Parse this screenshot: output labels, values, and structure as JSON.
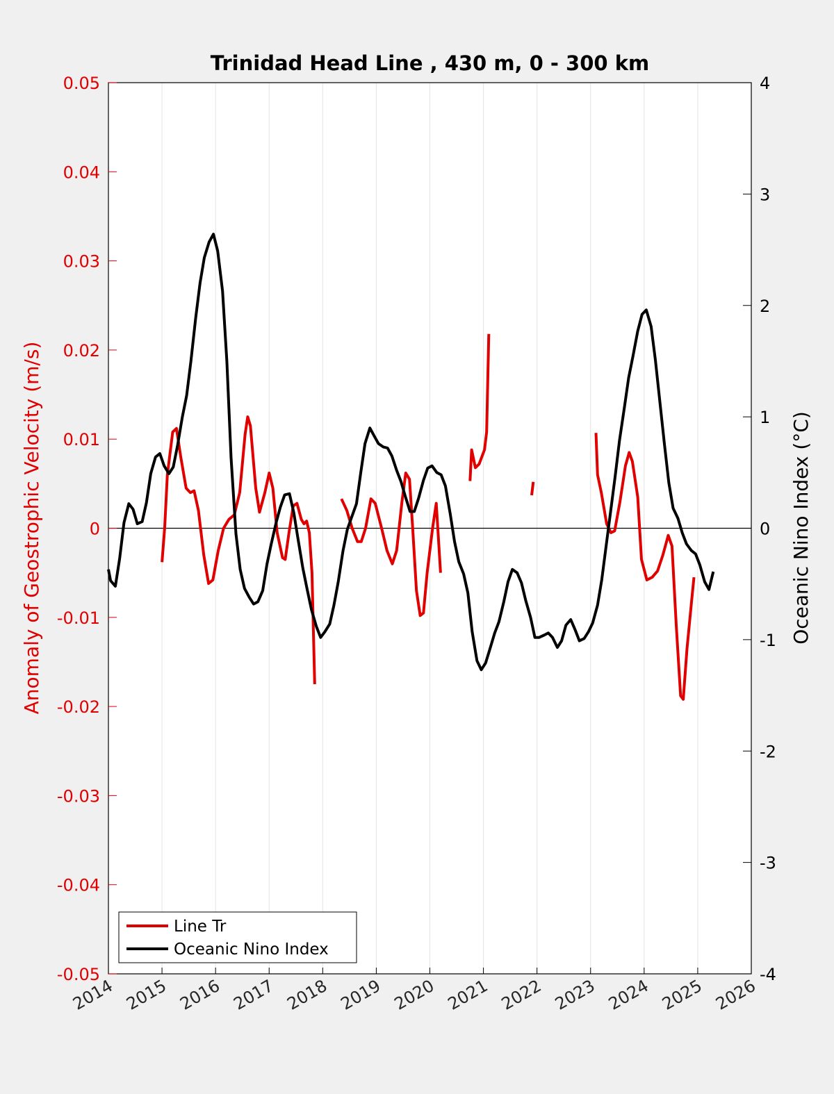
{
  "chart_data": {
    "type": "line",
    "title": "Trinidad Head Line , 430 m, 0 - 300 km",
    "xlabel": "",
    "ylabel_left": "Anomaly of Geostrophic Velocity (m/s)",
    "ylabel_right": "Oceanic Nino Index (°C)",
    "xlim": [
      2014,
      2026
    ],
    "ylim_left": [
      -0.05,
      0.05
    ],
    "ylim_right": [
      -4,
      4
    ],
    "x_ticks": [
      "2014",
      "2015",
      "2016",
      "2017",
      "2018",
      "2019",
      "2020",
      "2021",
      "2022",
      "2023",
      "2024",
      "2025",
      "2026"
    ],
    "y_ticks_left": [
      "-0.05",
      "-0.04",
      "-0.03",
      "-0.02",
      "-0.01",
      "0",
      "0.01",
      "0.02",
      "0.03",
      "0.04",
      "0.05"
    ],
    "y_ticks_right": [
      "-4",
      "-3",
      "-2",
      "-1",
      "0",
      "1",
      "2",
      "3",
      "4"
    ],
    "grid": "vertical",
    "legend_position": "bottom-left",
    "colors": {
      "line_tr": "#e00000",
      "oni": "#000000",
      "left_axis": "#e00000",
      "right_axis": "#000000"
    },
    "series": [
      {
        "name": "Line Tr",
        "axis": "left",
        "segments": [
          [
            [
              2015.0,
              -0.0038
            ],
            [
              2015.05,
              0.0
            ],
            [
              2015.1,
              0.006
            ],
            [
              2015.2,
              0.0108
            ],
            [
              2015.27,
              0.0112
            ],
            [
              2015.35,
              0.008
            ],
            [
              2015.45,
              0.0045
            ],
            [
              2015.53,
              0.004
            ],
            [
              2015.6,
              0.0042
            ],
            [
              2015.68,
              0.002
            ],
            [
              2015.78,
              -0.003
            ],
            [
              2015.87,
              -0.0062
            ],
            [
              2015.95,
              -0.0058
            ],
            [
              2016.05,
              -0.0025
            ],
            [
              2016.15,
              0.0
            ],
            [
              2016.25,
              0.001
            ],
            [
              2016.35,
              0.0015
            ],
            [
              2016.45,
              0.004
            ],
            [
              2016.55,
              0.0105
            ],
            [
              2016.6,
              0.0125
            ],
            [
              2016.65,
              0.0115
            ],
            [
              2016.75,
              0.0045
            ],
            [
              2016.82,
              0.0018
            ],
            [
              2016.92,
              0.004
            ],
            [
              2017.0,
              0.0062
            ],
            [
              2017.07,
              0.0045
            ],
            [
              2017.15,
              -0.0005
            ],
            [
              2017.25,
              -0.0033
            ],
            [
              2017.3,
              -0.0035
            ],
            [
              2017.37,
              -0.0005
            ],
            [
              2017.45,
              0.0025
            ],
            [
              2017.52,
              0.0028
            ],
            [
              2017.6,
              0.001
            ],
            [
              2017.65,
              0.0005
            ],
            [
              2017.7,
              0.0008
            ],
            [
              2017.75,
              -0.0005
            ],
            [
              2017.8,
              -0.005
            ],
            [
              2017.85,
              -0.0175
            ]
          ],
          [
            [
              2018.35,
              0.0033
            ],
            [
              2018.45,
              0.002
            ],
            [
              2018.55,
              0.0
            ],
            [
              2018.65,
              -0.0015
            ],
            [
              2018.72,
              -0.0015
            ],
            [
              2018.8,
              0.0
            ],
            [
              2018.9,
              0.0033
            ],
            [
              2018.98,
              0.0028
            ],
            [
              2019.1,
              0.0
            ],
            [
              2019.2,
              -0.0025
            ],
            [
              2019.3,
              -0.004
            ],
            [
              2019.38,
              -0.0025
            ],
            [
              2019.48,
              0.003
            ],
            [
              2019.55,
              0.0062
            ],
            [
              2019.62,
              0.0055
            ],
            [
              2019.68,
              0.0
            ],
            [
              2019.75,
              -0.007
            ],
            [
              2019.82,
              -0.0098
            ],
            [
              2019.88,
              -0.0095
            ],
            [
              2019.95,
              -0.005
            ],
            [
              2020.05,
              0.0
            ],
            [
              2020.12,
              0.0028
            ],
            [
              2020.2,
              -0.005
            ]
          ],
          [
            [
              2020.75,
              0.0053
            ],
            [
              2020.78,
              0.0088
            ],
            [
              2020.8,
              0.0082
            ],
            [
              2020.85,
              0.0068
            ],
            [
              2020.92,
              0.0072
            ],
            [
              2021.02,
              0.0088
            ],
            [
              2021.06,
              0.0108
            ],
            [
              2021.1,
              0.0218
            ]
          ],
          [
            [
              2021.9,
              0.0037
            ],
            [
              2021.93,
              0.0052
            ]
          ],
          [
            [
              2023.1,
              0.0107
            ],
            [
              2023.13,
              0.006
            ],
            [
              2023.2,
              0.004
            ],
            [
              2023.3,
              0.0005
            ],
            [
              2023.38,
              -0.0005
            ],
            [
              2023.45,
              -0.0003
            ],
            [
              2023.55,
              0.003
            ],
            [
              2023.65,
              0.007
            ],
            [
              2023.72,
              0.0085
            ],
            [
              2023.78,
              0.0075
            ],
            [
              2023.88,
              0.0035
            ],
            [
              2023.95,
              -0.0035
            ],
            [
              2024.05,
              -0.0058
            ],
            [
              2024.15,
              -0.0055
            ],
            [
              2024.25,
              -0.0048
            ],
            [
              2024.35,
              -0.003
            ],
            [
              2024.45,
              -0.0008
            ],
            [
              2024.52,
              -0.002
            ],
            [
              2024.6,
              -0.011
            ],
            [
              2024.68,
              -0.0188
            ],
            [
              2024.73,
              -0.0192
            ],
            [
              2024.8,
              -0.0135
            ],
            [
              2024.88,
              -0.0085
            ],
            [
              2024.93,
              -0.0055
            ]
          ]
        ]
      },
      {
        "name": "Oceanic Nino Index",
        "axis": "right",
        "segments": [
          [
            [
              2014.0,
              -0.37
            ],
            [
              2014.04,
              -0.47
            ],
            [
              2014.13,
              -0.52
            ],
            [
              2014.21,
              -0.27
            ],
            [
              2014.29,
              0.05
            ],
            [
              2014.38,
              0.22
            ],
            [
              2014.46,
              0.17
            ],
            [
              2014.54,
              0.04
            ],
            [
              2014.63,
              0.06
            ],
            [
              2014.71,
              0.23
            ],
            [
              2014.79,
              0.49
            ],
            [
              2014.88,
              0.64
            ],
            [
              2014.96,
              0.67
            ],
            [
              2015.04,
              0.56
            ],
            [
              2015.13,
              0.49
            ],
            [
              2015.21,
              0.55
            ],
            [
              2015.29,
              0.74
            ],
            [
              2015.38,
              1.0
            ],
            [
              2015.46,
              1.19
            ],
            [
              2015.54,
              1.5
            ],
            [
              2015.63,
              1.89
            ],
            [
              2015.71,
              2.2
            ],
            [
              2015.79,
              2.43
            ],
            [
              2015.88,
              2.57
            ],
            [
              2015.96,
              2.64
            ],
            [
              2016.04,
              2.49
            ],
            [
              2016.13,
              2.13
            ],
            [
              2016.21,
              1.5
            ],
            [
              2016.29,
              0.63
            ],
            [
              2016.38,
              -0.05
            ],
            [
              2016.46,
              -0.37
            ],
            [
              2016.54,
              -0.54
            ],
            [
              2016.63,
              -0.62
            ],
            [
              2016.71,
              -0.68
            ],
            [
              2016.79,
              -0.66
            ],
            [
              2016.88,
              -0.56
            ],
            [
              2016.96,
              -0.32
            ],
            [
              2017.04,
              -0.14
            ],
            [
              2017.13,
              0.05
            ],
            [
              2017.21,
              0.19
            ],
            [
              2017.29,
              0.3
            ],
            [
              2017.38,
              0.31
            ],
            [
              2017.46,
              0.14
            ],
            [
              2017.54,
              -0.1
            ],
            [
              2017.63,
              -0.36
            ],
            [
              2017.71,
              -0.55
            ],
            [
              2017.79,
              -0.73
            ],
            [
              2017.88,
              -0.88
            ],
            [
              2017.96,
              -0.98
            ],
            [
              2018.04,
              -0.93
            ],
            [
              2018.13,
              -0.86
            ],
            [
              2018.21,
              -0.69
            ],
            [
              2018.29,
              -0.48
            ],
            [
              2018.38,
              -0.2
            ],
            [
              2018.46,
              -0.01
            ],
            [
              2018.54,
              0.1
            ],
            [
              2018.63,
              0.22
            ],
            [
              2018.71,
              0.5
            ],
            [
              2018.79,
              0.76
            ],
            [
              2018.88,
              0.9
            ],
            [
              2018.96,
              0.83
            ],
            [
              2019.04,
              0.76
            ],
            [
              2019.13,
              0.73
            ],
            [
              2019.21,
              0.72
            ],
            [
              2019.29,
              0.65
            ],
            [
              2019.38,
              0.52
            ],
            [
              2019.46,
              0.42
            ],
            [
              2019.54,
              0.29
            ],
            [
              2019.63,
              0.15
            ],
            [
              2019.71,
              0.15
            ],
            [
              2019.79,
              0.27
            ],
            [
              2019.88,
              0.43
            ],
            [
              2019.96,
              0.54
            ],
            [
              2020.04,
              0.56
            ],
            [
              2020.13,
              0.5
            ],
            [
              2020.21,
              0.48
            ],
            [
              2020.29,
              0.38
            ],
            [
              2020.38,
              0.13
            ],
            [
              2020.46,
              -0.12
            ],
            [
              2020.54,
              -0.3
            ],
            [
              2020.63,
              -0.41
            ],
            [
              2020.71,
              -0.58
            ],
            [
              2020.79,
              -0.93
            ],
            [
              2020.88,
              -1.19
            ],
            [
              2020.96,
              -1.27
            ],
            [
              2021.04,
              -1.21
            ],
            [
              2021.13,
              -1.07
            ],
            [
              2021.21,
              -0.94
            ],
            [
              2021.29,
              -0.84
            ],
            [
              2021.38,
              -0.66
            ],
            [
              2021.46,
              -0.48
            ],
            [
              2021.54,
              -0.37
            ],
            [
              2021.63,
              -0.4
            ],
            [
              2021.71,
              -0.49
            ],
            [
              2021.79,
              -0.65
            ],
            [
              2021.88,
              -0.8
            ],
            [
              2021.96,
              -0.98
            ],
            [
              2022.04,
              -0.98
            ],
            [
              2022.13,
              -0.96
            ],
            [
              2022.21,
              -0.94
            ],
            [
              2022.29,
              -0.98
            ],
            [
              2022.38,
              -1.07
            ],
            [
              2022.46,
              -1.01
            ],
            [
              2022.54,
              -0.87
            ],
            [
              2022.63,
              -0.82
            ],
            [
              2022.71,
              -0.91
            ],
            [
              2022.79,
              -1.01
            ],
            [
              2022.88,
              -0.99
            ],
            [
              2022.96,
              -0.93
            ],
            [
              2023.04,
              -0.85
            ],
            [
              2023.13,
              -0.69
            ],
            [
              2023.21,
              -0.46
            ],
            [
              2023.29,
              -0.16
            ],
            [
              2023.38,
              0.17
            ],
            [
              2023.46,
              0.47
            ],
            [
              2023.54,
              0.79
            ],
            [
              2023.63,
              1.08
            ],
            [
              2023.71,
              1.35
            ],
            [
              2023.79,
              1.54
            ],
            [
              2023.88,
              1.77
            ],
            [
              2023.96,
              1.92
            ],
            [
              2024.04,
              1.96
            ],
            [
              2024.13,
              1.81
            ],
            [
              2024.21,
              1.51
            ],
            [
              2024.29,
              1.15
            ],
            [
              2024.38,
              0.75
            ],
            [
              2024.46,
              0.41
            ],
            [
              2024.54,
              0.18
            ],
            [
              2024.63,
              0.09
            ],
            [
              2024.71,
              -0.04
            ],
            [
              2024.79,
              -0.14
            ],
            [
              2024.88,
              -0.2
            ],
            [
              2024.96,
              -0.23
            ],
            [
              2025.04,
              -0.33
            ],
            [
              2025.13,
              -0.48
            ],
            [
              2025.21,
              -0.55
            ],
            [
              2025.29,
              -0.39
            ]
          ]
        ]
      }
    ]
  }
}
